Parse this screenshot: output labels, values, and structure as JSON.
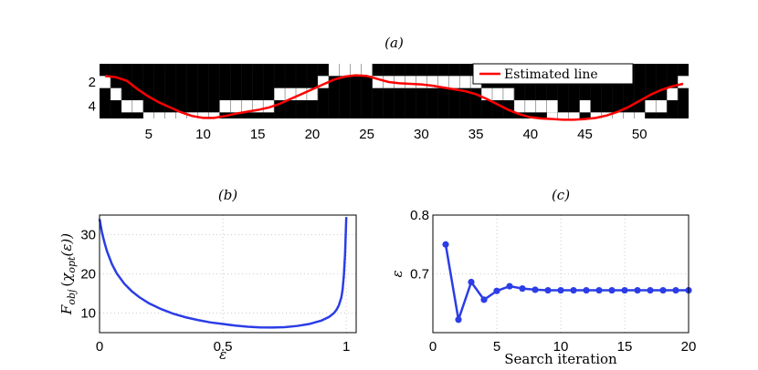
{
  "chart_data": [
    {
      "panel": "a",
      "type": "heatmap",
      "title": "(a)",
      "xticks": [
        "5",
        "10",
        "15",
        "20",
        "25",
        "30",
        "35",
        "40",
        "45",
        "50"
      ],
      "xtick_values": [
        5,
        10,
        15,
        20,
        25,
        30,
        35,
        40,
        45,
        50
      ],
      "yticks": [
        "2",
        "4"
      ],
      "ytick_values": [
        2,
        4
      ],
      "xlim": [
        0.5,
        54.5
      ],
      "ylim": [
        0.5,
        5.0
      ],
      "white_cell_rows": [
        2,
        3,
        4,
        4,
        5,
        5,
        5,
        5,
        5,
        5,
        5,
        4,
        4,
        4,
        4,
        4,
        3,
        3,
        3,
        3,
        2,
        1,
        1,
        1,
        1,
        2,
        2,
        2,
        2,
        2,
        2,
        2,
        2,
        2,
        2,
        3,
        3,
        3,
        4,
        4,
        4,
        5,
        5,
        5,
        4,
        5,
        5,
        5,
        5,
        5,
        4,
        4,
        3,
        2
      ],
      "white_cell_row2": {
        "42": 4
      },
      "estimated_line": {
        "name": "Estimated line",
        "color": "#ff0000",
        "x": [
          1,
          2,
          3,
          4,
          5,
          6,
          7,
          8,
          9,
          10,
          11,
          12,
          13,
          14,
          15,
          16,
          17,
          18,
          19,
          20,
          21,
          22,
          23,
          24,
          25,
          26,
          27,
          28,
          29,
          30,
          31,
          32,
          33,
          34,
          35,
          36,
          37,
          38,
          39,
          40,
          41,
          42,
          43,
          44,
          45,
          46,
          47,
          48,
          49,
          50,
          51,
          52,
          53,
          54
        ],
        "y": [
          1.5,
          1.6,
          1.9,
          2.6,
          3.2,
          3.7,
          4.1,
          4.5,
          4.8,
          4.95,
          4.95,
          4.8,
          4.6,
          4.45,
          4.3,
          4.1,
          3.8,
          3.4,
          3.0,
          2.6,
          2.2,
          1.8,
          1.55,
          1.45,
          1.5,
          1.75,
          2.0,
          2.1,
          2.15,
          2.2,
          2.3,
          2.45,
          2.6,
          2.75,
          3.0,
          3.4,
          3.85,
          4.3,
          4.65,
          4.9,
          5.0,
          5.05,
          5.1,
          5.1,
          5.05,
          4.95,
          4.75,
          4.45,
          4.05,
          3.55,
          3.05,
          2.65,
          2.35,
          2.15
        ]
      }
    },
    {
      "panel": "b",
      "type": "line",
      "title": "(b)",
      "xlabel": "ε",
      "ylabel": "F_obj (χ_opt(ε))",
      "ylabel_parts": {
        "F": "F",
        "obj": "obj",
        "paren_open": "(",
        "chi": "χ",
        "opt": "opt",
        "arg": "(ε))"
      },
      "xlim": [
        0,
        1.04
      ],
      "ylim": [
        5,
        35
      ],
      "xticks": [
        "0",
        "0.5",
        "1"
      ],
      "xtick_values": [
        0,
        0.5,
        1
      ],
      "yticks": [
        "10",
        "20",
        "30"
      ],
      "ytick_values": [
        10,
        20,
        30
      ],
      "grid": true,
      "series": [
        {
          "name": "F_obj",
          "color": "#2b3de6",
          "x": [
            0.0,
            0.01,
            0.02,
            0.03,
            0.05,
            0.07,
            0.1,
            0.13,
            0.16,
            0.2,
            0.25,
            0.3,
            0.35,
            0.4,
            0.45,
            0.5,
            0.55,
            0.6,
            0.65,
            0.7,
            0.75,
            0.8,
            0.85,
            0.9,
            0.93,
            0.95,
            0.96,
            0.97,
            0.98,
            0.985,
            0.99,
            0.995,
            1.0
          ],
          "y": [
            34,
            30.5,
            28,
            25.8,
            22.5,
            20.1,
            17.5,
            15.6,
            14.1,
            12.5,
            11.0,
            9.8,
            8.9,
            8.2,
            7.6,
            7.2,
            6.8,
            6.5,
            6.35,
            6.3,
            6.4,
            6.7,
            7.2,
            8.1,
            9.0,
            10.0,
            10.8,
            12.0,
            14.0,
            16.0,
            19.5,
            25.0,
            34.5
          ]
        }
      ]
    },
    {
      "panel": "c",
      "type": "line",
      "title": "(c)",
      "xlabel": "Search iteration",
      "ylabel": "ε",
      "xlim": [
        0,
        20
      ],
      "ylim": [
        0.6,
        0.8
      ],
      "xticks": [
        "0",
        "5",
        "10",
        "15",
        "20"
      ],
      "xtick_values": [
        0,
        5,
        10,
        15,
        20
      ],
      "yticks": [
        "0.7",
        "0.8"
      ],
      "ytick_values": [
        0.7,
        0.8
      ],
      "grid": true,
      "series": [
        {
          "name": "epsilon",
          "color": "#2b3de6",
          "marker": "circle",
          "x": [
            1,
            2,
            3,
            4,
            5,
            6,
            7,
            8,
            9,
            10,
            11,
            12,
            13,
            14,
            15,
            16,
            17,
            18,
            19,
            20
          ],
          "y": [
            0.75,
            0.622,
            0.686,
            0.656,
            0.671,
            0.679,
            0.675,
            0.673,
            0.672,
            0.672,
            0.672,
            0.672,
            0.672,
            0.672,
            0.672,
            0.672,
            0.672,
            0.672,
            0.672,
            0.672
          ]
        }
      ]
    }
  ]
}
